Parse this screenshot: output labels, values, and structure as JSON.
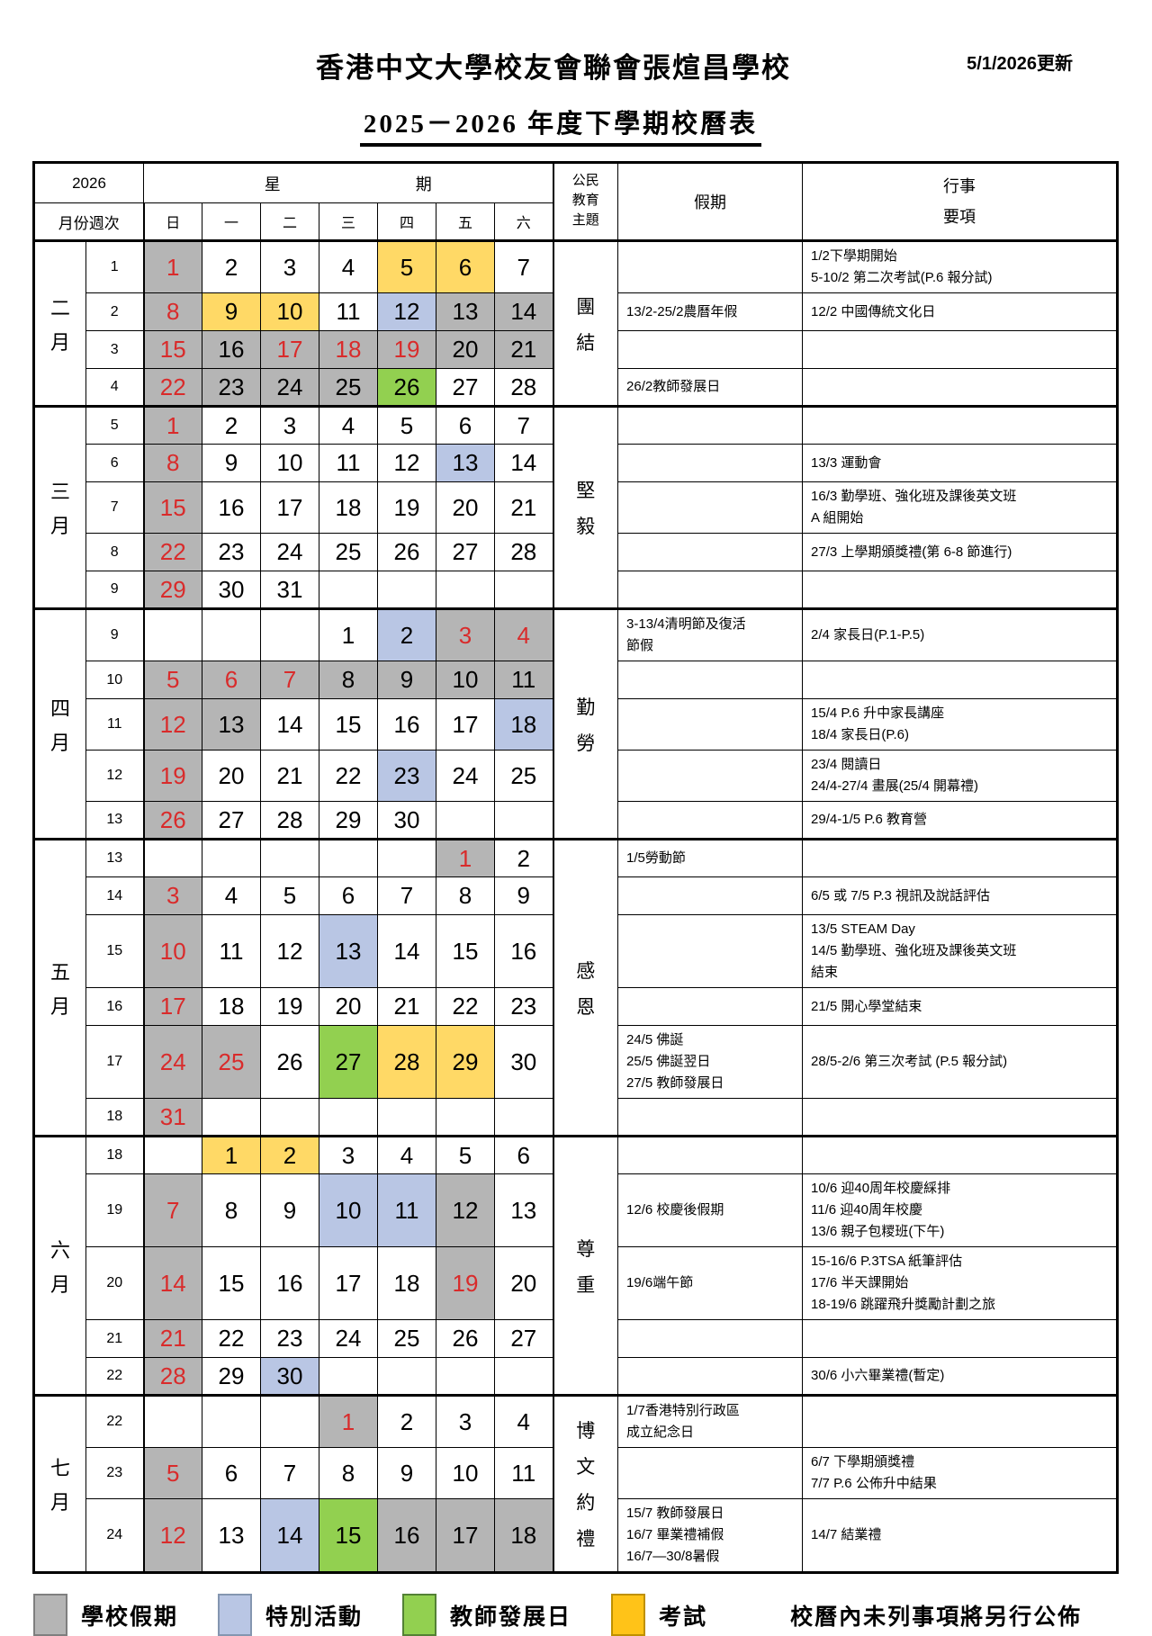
{
  "page": {
    "title": "香港中文大學校友會聯會張煊昌學校",
    "updated": "5/1/2026更新",
    "subtitle": "2025－2026 年度下學期校曆表"
  },
  "table_header": {
    "year": "2026",
    "week_label_chars": [
      "星",
      "期"
    ],
    "month_week": "月份週次",
    "days": [
      "日",
      "一",
      "二",
      "三",
      "四",
      "五",
      "六"
    ],
    "civic_lines": [
      "公民",
      "教育",
      "主題"
    ],
    "holiday": "假期",
    "events_lines": [
      "行事",
      "要項"
    ]
  },
  "colors": {
    "gray": "#B5B5B5",
    "blue": "#B9C6E4",
    "green": "#92D050",
    "yellow": "#FFD966",
    "red": "#D92B2B"
  },
  "months": [
    {
      "label": "二月",
      "theme": "團結",
      "weeks": [
        {
          "num": "1",
          "days": [
            {
              "d": "1",
              "bg": "gray",
              "red": true
            },
            {
              "d": "2"
            },
            {
              "d": "3"
            },
            {
              "d": "4"
            },
            {
              "d": "5",
              "bg": "yellow"
            },
            {
              "d": "6",
              "bg": "yellow"
            },
            {
              "d": "7"
            }
          ],
          "holiday": "",
          "events": "1/2下學期開始\n5-10/2 第二次考試(P.6 報分試)"
        },
        {
          "num": "2",
          "days": [
            {
              "d": "8",
              "bg": "gray",
              "red": true
            },
            {
              "d": "9",
              "bg": "yellow"
            },
            {
              "d": "10",
              "bg": "yellow"
            },
            {
              "d": "11"
            },
            {
              "d": "12",
              "bg": "blue"
            },
            {
              "d": "13",
              "bg": "gray"
            },
            {
              "d": "14",
              "bg": "gray"
            }
          ],
          "holiday": "13/2-25/2農曆年假",
          "events": "12/2 中國傳統文化日"
        },
        {
          "num": "3",
          "days": [
            {
              "d": "15",
              "bg": "gray",
              "red": true
            },
            {
              "d": "16",
              "bg": "gray"
            },
            {
              "d": "17",
              "bg": "gray",
              "red": true
            },
            {
              "d": "18",
              "bg": "gray",
              "red": true
            },
            {
              "d": "19",
              "bg": "gray",
              "red": true
            },
            {
              "d": "20",
              "bg": "gray"
            },
            {
              "d": "21",
              "bg": "gray"
            }
          ],
          "holiday": "",
          "events": ""
        },
        {
          "num": "4",
          "days": [
            {
              "d": "22",
              "bg": "gray",
              "red": true
            },
            {
              "d": "23",
              "bg": "gray"
            },
            {
              "d": "24",
              "bg": "gray"
            },
            {
              "d": "25",
              "bg": "gray"
            },
            {
              "d": "26",
              "bg": "green"
            },
            {
              "d": "27"
            },
            {
              "d": "28"
            }
          ],
          "holiday": "26/2教師發展日",
          "events": ""
        }
      ]
    },
    {
      "label": "三月",
      "theme": "堅毅",
      "weeks": [
        {
          "num": "5",
          "days": [
            {
              "d": "1",
              "bg": "gray",
              "red": true
            },
            {
              "d": "2"
            },
            {
              "d": "3"
            },
            {
              "d": "4"
            },
            {
              "d": "5"
            },
            {
              "d": "6"
            },
            {
              "d": "7"
            }
          ],
          "holiday": "",
          "events": ""
        },
        {
          "num": "6",
          "days": [
            {
              "d": "8",
              "bg": "gray",
              "red": true
            },
            {
              "d": "9"
            },
            {
              "d": "10"
            },
            {
              "d": "11"
            },
            {
              "d": "12"
            },
            {
              "d": "13",
              "bg": "blue"
            },
            {
              "d": "14"
            }
          ],
          "holiday": "",
          "events": "13/3 運動會"
        },
        {
          "num": "7",
          "days": [
            {
              "d": "15",
              "bg": "gray",
              "red": true
            },
            {
              "d": "16"
            },
            {
              "d": "17"
            },
            {
              "d": "18"
            },
            {
              "d": "19"
            },
            {
              "d": "20"
            },
            {
              "d": "21"
            }
          ],
          "holiday": "",
          "events": "16/3 勤學班、強化班及課後英文班\nA 組開始"
        },
        {
          "num": "8",
          "days": [
            {
              "d": "22",
              "bg": "gray",
              "red": true
            },
            {
              "d": "23"
            },
            {
              "d": "24"
            },
            {
              "d": "25"
            },
            {
              "d": "26"
            },
            {
              "d": "27"
            },
            {
              "d": "28"
            }
          ],
          "holiday": "",
          "events": "27/3 上學期頒獎禮(第 6-8 節進行)"
        },
        {
          "num": "9",
          "days": [
            {
              "d": "29",
              "bg": "gray",
              "red": true
            },
            {
              "d": "30"
            },
            {
              "d": "31"
            },
            {
              "d": ""
            },
            {
              "d": ""
            },
            {
              "d": ""
            },
            {
              "d": ""
            }
          ],
          "holiday": "",
          "events": ""
        }
      ]
    },
    {
      "label": "四月",
      "theme": "勤勞",
      "weeks": [
        {
          "num": "9",
          "days": [
            {
              "d": ""
            },
            {
              "d": ""
            },
            {
              "d": ""
            },
            {
              "d": "1"
            },
            {
              "d": "2",
              "bg": "blue"
            },
            {
              "d": "3",
              "bg": "gray",
              "red": true
            },
            {
              "d": "4",
              "bg": "gray",
              "red": true
            }
          ],
          "holiday": "3-13/4清明節及復活\n節假",
          "events": "2/4 家長日(P.1-P.5)"
        },
        {
          "num": "10",
          "days": [
            {
              "d": "5",
              "bg": "gray",
              "red": true
            },
            {
              "d": "6",
              "bg": "gray",
              "red": true
            },
            {
              "d": "7",
              "bg": "gray",
              "red": true
            },
            {
              "d": "8",
              "bg": "gray"
            },
            {
              "d": "9",
              "bg": "gray"
            },
            {
              "d": "10",
              "bg": "gray"
            },
            {
              "d": "11",
              "bg": "gray"
            }
          ],
          "holiday": "",
          "events": ""
        },
        {
          "num": "11",
          "days": [
            {
              "d": "12",
              "bg": "gray",
              "red": true
            },
            {
              "d": "13",
              "bg": "gray"
            },
            {
              "d": "14"
            },
            {
              "d": "15"
            },
            {
              "d": "16"
            },
            {
              "d": "17"
            },
            {
              "d": "18",
              "bg": "blue"
            }
          ],
          "holiday": "",
          "events": "15/4 P.6 升中家長講座\n18/4 家長日(P.6)"
        },
        {
          "num": "12",
          "days": [
            {
              "d": "19",
              "bg": "gray",
              "red": true
            },
            {
              "d": "20"
            },
            {
              "d": "21"
            },
            {
              "d": "22"
            },
            {
              "d": "23",
              "bg": "blue"
            },
            {
              "d": "24"
            },
            {
              "d": "25"
            }
          ],
          "holiday": "",
          "events": "23/4 閱讀日\n24/4-27/4 畫展(25/4 開幕禮)"
        },
        {
          "num": "13",
          "days": [
            {
              "d": "26",
              "bg": "gray",
              "red": true
            },
            {
              "d": "27"
            },
            {
              "d": "28"
            },
            {
              "d": "29"
            },
            {
              "d": "30"
            },
            {
              "d": ""
            },
            {
              "d": ""
            }
          ],
          "holiday": "",
          "events": "29/4-1/5 P.6 教育營"
        }
      ]
    },
    {
      "label": "五月",
      "theme": "感恩",
      "weeks": [
        {
          "num": "13",
          "days": [
            {
              "d": ""
            },
            {
              "d": ""
            },
            {
              "d": ""
            },
            {
              "d": ""
            },
            {
              "d": ""
            },
            {
              "d": "1",
              "bg": "gray",
              "red": true
            },
            {
              "d": "2"
            }
          ],
          "holiday": "1/5勞動節",
          "events": ""
        },
        {
          "num": "14",
          "days": [
            {
              "d": "3",
              "bg": "gray",
              "red": true
            },
            {
              "d": "4"
            },
            {
              "d": "5"
            },
            {
              "d": "6"
            },
            {
              "d": "7"
            },
            {
              "d": "8"
            },
            {
              "d": "9"
            }
          ],
          "holiday": "",
          "events": "6/5 或 7/5 P.3 視訊及說話評估"
        },
        {
          "num": "15",
          "days": [
            {
              "d": "10",
              "bg": "gray",
              "red": true
            },
            {
              "d": "11"
            },
            {
              "d": "12"
            },
            {
              "d": "13",
              "bg": "blue"
            },
            {
              "d": "14"
            },
            {
              "d": "15"
            },
            {
              "d": "16"
            }
          ],
          "holiday": "",
          "events": "13/5 STEAM Day\n14/5 勤學班、強化班及課後英文班\n結束"
        },
        {
          "num": "16",
          "days": [
            {
              "d": "17",
              "bg": "gray",
              "red": true
            },
            {
              "d": "18"
            },
            {
              "d": "19"
            },
            {
              "d": "20"
            },
            {
              "d": "21"
            },
            {
              "d": "22"
            },
            {
              "d": "23"
            }
          ],
          "holiday": "",
          "events": "21/5 開心學堂結束"
        },
        {
          "num": "17",
          "days": [
            {
              "d": "24",
              "bg": "gray",
              "red": true
            },
            {
              "d": "25",
              "bg": "gray",
              "red": true
            },
            {
              "d": "26"
            },
            {
              "d": "27",
              "bg": "green"
            },
            {
              "d": "28",
              "bg": "yellow"
            },
            {
              "d": "29",
              "bg": "yellow"
            },
            {
              "d": "30"
            }
          ],
          "holiday": "24/5 佛誕\n25/5 佛誕翌日\n27/5  教師發展日",
          "events": "28/5-2/6 第三次考試 (P.5 報分試)"
        },
        {
          "num": "18",
          "days": [
            {
              "d": "31",
              "bg": "gray",
              "red": true
            },
            {
              "d": ""
            },
            {
              "d": ""
            },
            {
              "d": ""
            },
            {
              "d": ""
            },
            {
              "d": ""
            },
            {
              "d": ""
            }
          ],
          "holiday": "",
          "events": ""
        }
      ]
    },
    {
      "label": "六月",
      "theme": "尊重",
      "weeks": [
        {
          "num": "18",
          "days": [
            {
              "d": ""
            },
            {
              "d": "1",
              "bg": "yellow"
            },
            {
              "d": "2",
              "bg": "yellow"
            },
            {
              "d": "3"
            },
            {
              "d": "4"
            },
            {
              "d": "5"
            },
            {
              "d": "6"
            }
          ],
          "holiday": "",
          "events": ""
        },
        {
          "num": "19",
          "days": [
            {
              "d": "7",
              "bg": "gray",
              "red": true
            },
            {
              "d": "8"
            },
            {
              "d": "9"
            },
            {
              "d": "10",
              "bg": "blue"
            },
            {
              "d": "11",
              "bg": "blue"
            },
            {
              "d": "12",
              "bg": "gray"
            },
            {
              "d": "13"
            }
          ],
          "holiday": "12/6 校慶後假期",
          "events": "10/6  迎40周年校慶綵排\n11/6  迎40周年校慶\n13/6  親子包糭班(下午)"
        },
        {
          "num": "20",
          "days": [
            {
              "d": "14",
              "bg": "gray",
              "red": true
            },
            {
              "d": "15"
            },
            {
              "d": "16"
            },
            {
              "d": "17"
            },
            {
              "d": "18"
            },
            {
              "d": "19",
              "bg": "gray",
              "red": true
            },
            {
              "d": "20"
            }
          ],
          "holiday": "19/6端午節",
          "events": "15-16/6 P.3TSA 紙筆評估\n17/6 半天課開始\n18-19/6 跳躍飛升獎勵計劃之旅"
        },
        {
          "num": "21",
          "days": [
            {
              "d": "21",
              "bg": "gray",
              "red": true
            },
            {
              "d": "22"
            },
            {
              "d": "23"
            },
            {
              "d": "24"
            },
            {
              "d": "25"
            },
            {
              "d": "26"
            },
            {
              "d": "27"
            }
          ],
          "holiday": "",
          "events": ""
        },
        {
          "num": "22",
          "days": [
            {
              "d": "28",
              "bg": "gray",
              "red": true
            },
            {
              "d": "29"
            },
            {
              "d": "30",
              "bg": "blue"
            },
            {
              "d": ""
            },
            {
              "d": ""
            },
            {
              "d": ""
            },
            {
              "d": ""
            }
          ],
          "holiday": "",
          "events": "30/6 小六畢業禮(暫定)"
        }
      ]
    },
    {
      "label": "七月",
      "theme": "博文約禮",
      "weeks": [
        {
          "num": "22",
          "days": [
            {
              "d": ""
            },
            {
              "d": ""
            },
            {
              "d": ""
            },
            {
              "d": "1",
              "bg": "gray",
              "red": true
            },
            {
              "d": "2"
            },
            {
              "d": "3"
            },
            {
              "d": "4"
            }
          ],
          "holiday": "1/7香港特別行政區\n成立紀念日",
          "events": ""
        },
        {
          "num": "23",
          "days": [
            {
              "d": "5",
              "bg": "gray",
              "red": true
            },
            {
              "d": "6"
            },
            {
              "d": "7"
            },
            {
              "d": "8"
            },
            {
              "d": "9"
            },
            {
              "d": "10"
            },
            {
              "d": "11"
            }
          ],
          "holiday": "",
          "events": "6/7  下學期頒獎禮\n7/7 P.6 公佈升中結果"
        },
        {
          "num": "24",
          "days": [
            {
              "d": "12",
              "bg": "gray",
              "red": true
            },
            {
              "d": "13"
            },
            {
              "d": "14",
              "bg": "blue"
            },
            {
              "d": "15",
              "bg": "green"
            },
            {
              "d": "16",
              "bg": "gray"
            },
            {
              "d": "17",
              "bg": "gray"
            },
            {
              "d": "18",
              "bg": "gray"
            }
          ],
          "holiday": "15/7  教師發展日\n16/7  畢業禮補假\n16/7—30/8暑假",
          "events": "14/7  結業禮"
        }
      ]
    }
  ],
  "legend": {
    "items": [
      {
        "label": "學校假期",
        "fill": "#B5B5B5",
        "border": "#7F7F7F"
      },
      {
        "label": "特別活動",
        "fill": "#B9C6E4",
        "border": "#8496B0"
      },
      {
        "label": "教師發展日",
        "fill": "#92D050",
        "border": "#538135"
      },
      {
        "label": "考試",
        "fill": "#FFC318",
        "border": "#BF9000"
      }
    ],
    "note": "校曆內未列事項將另行公佈"
  }
}
